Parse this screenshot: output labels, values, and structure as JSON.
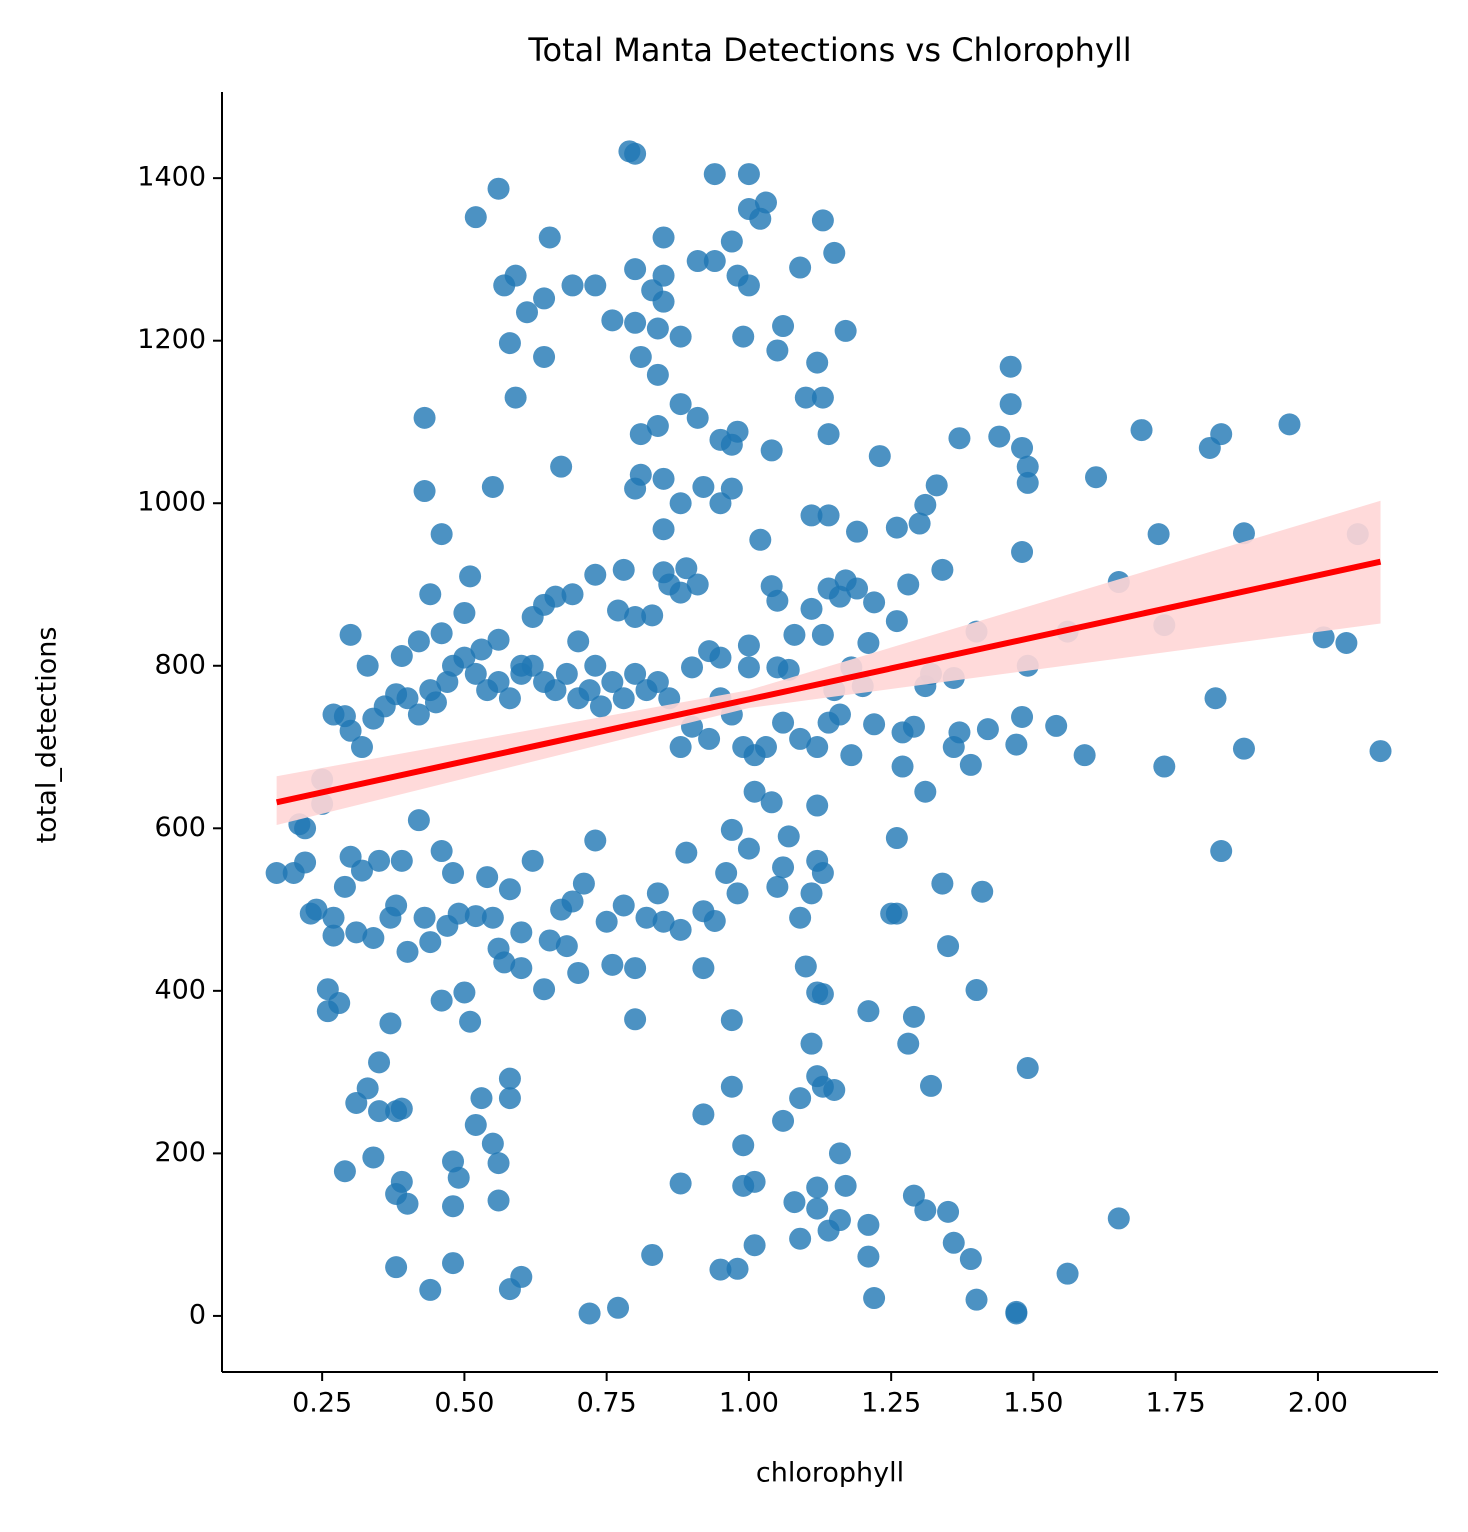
{
  "chart_data": {
    "type": "scatter",
    "title": "Total Manta Detections vs Chlorophyll",
    "x_label": "chlorophyll",
    "y_label": "total_detections",
    "xlim": [
      0.074,
      2.211
    ],
    "ylim": [
      -69,
      1506
    ],
    "xticks": [
      0.25,
      {
        "value": 0.5,
        "label": "0.50"
      },
      0.75,
      {
        "value": 1,
        "label": "1.00"
      },
      1.25,
      {
        "value": 1.5,
        "label": "1.50"
      },
      1.75,
      {
        "value": 2,
        "label": "2.00"
      }
    ],
    "yticks": [
      0,
      200,
      400,
      600,
      800,
      1000,
      1200,
      1400
    ],
    "points": {
      "color": "#1f77b4",
      "x": [
        0.79,
        0.8,
        0.56,
        0.52,
        0.94,
        1.0,
        1.0,
        1.03,
        1.02,
        1.13,
        0.65,
        0.85,
        0.97,
        1.15,
        0.64,
        0.61,
        0.59,
        0.57,
        0.69,
        0.73,
        0.8,
        0.85,
        0.91,
        0.94,
        0.98,
        1.0,
        1.09,
        0.83,
        0.85,
        0.76,
        0.8,
        0.84,
        0.88,
        0.99,
        0.58,
        0.64,
        0.81,
        0.84,
        1.06,
        1.05,
        1.17,
        1.12,
        1.46,
        0.59,
        0.43,
        0.88,
        0.91,
        0.95,
        0.97,
        0.98,
        0.81,
        0.84,
        1.1,
        1.13,
        1.14,
        1.46,
        1.44,
        1.37,
        1.48,
        1.49,
        1.49,
        1.61,
        1.69,
        1.81,
        1.83,
        1.95,
        0.67,
        0.55,
        0.43,
        0.81,
        0.8,
        0.85,
        0.88,
        0.92,
        0.95,
        0.97,
        1.04,
        1.23,
        1.33,
        1.31,
        1.11,
        1.14,
        0.46,
        0.85,
        1.02,
        1.19,
        1.26,
        1.3,
        1.48,
        1.72,
        1.87,
        2.07,
        1.65,
        1.28,
        1.34,
        0.44,
        0.51,
        0.73,
        0.78,
        0.85,
        0.89,
        0.91,
        0.3,
        0.33,
        0.39,
        0.42,
        0.46,
        0.5,
        0.53,
        0.56,
        0.6,
        0.62,
        0.64,
        0.66,
        0.69,
        0.7,
        0.73,
        0.77,
        0.8,
        0.83,
        0.86,
        0.88,
        0.93,
        0.95,
        1.0,
        1.04,
        1.05,
        1.08,
        1.11,
        1.13,
        1.14,
        1.16,
        1.17,
        1.19,
        1.22,
        1.26,
        1.21,
        1.18,
        1.15,
        1.05,
        1.07,
        1.0,
        0.9,
        1.4,
        1.56,
        1.73,
        2.01,
        2.05,
        1.49,
        1.32,
        1.36,
        1.2,
        1.31,
        1.82,
        0.25,
        0.27,
        0.29,
        0.3,
        0.32,
        0.34,
        0.36,
        0.38,
        0.4,
        0.42,
        0.44,
        0.45,
        0.47,
        0.48,
        0.5,
        0.52,
        0.54,
        0.56,
        0.58,
        0.6,
        0.62,
        0.64,
        0.66,
        0.68,
        0.7,
        0.72,
        0.74,
        0.76,
        0.78,
        0.8,
        0.82,
        0.84,
        0.86,
        0.88,
        0.9,
        0.93,
        0.95,
        0.97,
        0.99,
        1.01,
        1.03,
        1.06,
        1.09,
        1.12,
        1.14,
        1.16,
        1.18,
        1.22,
        1.27,
        1.29,
        1.36,
        1.37,
        1.39,
        1.42,
        1.47,
        1.48,
        1.54,
        1.59,
        1.73,
        1.87,
        2.11,
        1.27,
        1.31,
        1.26,
        1.83,
        0.17,
        0.2,
        0.21,
        0.22,
        0.22,
        0.23,
        0.24,
        0.25,
        0.27,
        0.27,
        0.29,
        0.3,
        0.31,
        0.32,
        0.34,
        0.35,
        0.37,
        0.38,
        0.39,
        0.4,
        0.42,
        0.43,
        0.44,
        0.46,
        0.46,
        0.47,
        0.48,
        0.49,
        0.5,
        0.51,
        0.52,
        0.54,
        0.55,
        0.56,
        0.57,
        0.58,
        0.6,
        0.6,
        0.62,
        0.64,
        0.65,
        0.67,
        0.68,
        0.69,
        0.7,
        0.71,
        0.73,
        0.75,
        0.76,
        0.78,
        0.8,
        0.8,
        0.82,
        0.84,
        0.85,
        0.88,
        0.89,
        0.92,
        0.92,
        0.94,
        0.96,
        0.97,
        0.98,
        1.0,
        1.01,
        1.04,
        1.05,
        1.06,
        1.07,
        1.09,
        1.1,
        1.11,
        1.12,
        1.12,
        1.13,
        1.25,
        1.26,
        1.34,
        1.41,
        1.35,
        0.97,
        1.12,
        1.13,
        1.21,
        1.29,
        1.4,
        0.26,
        0.28,
        0.26,
        0.37,
        0.35,
        0.33,
        0.31,
        0.35,
        0.38,
        0.39,
        0.34,
        0.29,
        0.38,
        0.39,
        0.4,
        0.38,
        0.44,
        0.48,
        0.49,
        0.48,
        0.48,
        0.52,
        0.53,
        0.55,
        0.56,
        0.56,
        0.58,
        0.58,
        0.58,
        0.6,
        0.72,
        0.77,
        0.83,
        0.88,
        0.92,
        0.95,
        0.97,
        0.98,
        0.99,
        0.99,
        1.01,
        1.01,
        1.06,
        1.08,
        1.09,
        1.09,
        1.11,
        1.12,
        1.12,
        1.12,
        1.13,
        1.14,
        1.15,
        1.16,
        1.16,
        1.17,
        1.21,
        1.21,
        1.22,
        1.28,
        1.29,
        1.31,
        1.32,
        1.35,
        1.36,
        1.39,
        1.4,
        1.47,
        1.47,
        1.49,
        1.56,
        1.65
      ],
      "y": [
        1433,
        1430,
        1387,
        1352,
        1405,
        1405,
        1362,
        1370,
        1350,
        1348,
        1327,
        1327,
        1322,
        1308,
        1252,
        1235,
        1280,
        1268,
        1268,
        1268,
        1288,
        1280,
        1298,
        1298,
        1280,
        1268,
        1290,
        1262,
        1248,
        1225,
        1222,
        1215,
        1205,
        1205,
        1197,
        1180,
        1180,
        1158,
        1218,
        1188,
        1212,
        1173,
        1168,
        1130,
        1105,
        1122,
        1105,
        1078,
        1072,
        1088,
        1085,
        1095,
        1130,
        1130,
        1085,
        1122,
        1082,
        1080,
        1068,
        1045,
        1025,
        1032,
        1090,
        1068,
        1085,
        1097,
        1045,
        1020,
        1015,
        1035,
        1018,
        1030,
        1000,
        1020,
        1000,
        1018,
        1065,
        1058,
        1022,
        998,
        985,
        985,
        962,
        968,
        955,
        965,
        970,
        975,
        940,
        962,
        963,
        962,
        903,
        900,
        918,
        888,
        910,
        912,
        918,
        915,
        920,
        900,
        838,
        800,
        812,
        830,
        840,
        865,
        820,
        832,
        800,
        860,
        875,
        885,
        888,
        830,
        800,
        868,
        860,
        862,
        900,
        890,
        818,
        810,
        825,
        898,
        880,
        838,
        870,
        838,
        895,
        885,
        905,
        895,
        878,
        855,
        828,
        798,
        770,
        798,
        795,
        798,
        798,
        842,
        842,
        850,
        835,
        828,
        800,
        790,
        785,
        775,
        775,
        760,
        660,
        740,
        738,
        720,
        700,
        735,
        750,
        765,
        760,
        740,
        770,
        755,
        780,
        800,
        810,
        790,
        770,
        780,
        760,
        790,
        800,
        780,
        770,
        790,
        760,
        770,
        750,
        780,
        760,
        790,
        770,
        780,
        760,
        700,
        725,
        710,
        760,
        740,
        700,
        690,
        700,
        730,
        710,
        700,
        730,
        740,
        690,
        728,
        718,
        725,
        700,
        718,
        678,
        722,
        703,
        737,
        726,
        690,
        676,
        698,
        695,
        676,
        645,
        588,
        572,
        545,
        545,
        605,
        600,
        558,
        495,
        500,
        630,
        490,
        468,
        528,
        565,
        472,
        548,
        465,
        560,
        490,
        505,
        560,
        448,
        610,
        490,
        460,
        572,
        388,
        480,
        545,
        495,
        398,
        362,
        492,
        540,
        490,
        452,
        435,
        525,
        472,
        428,
        560,
        402,
        462,
        500,
        455,
        510,
        422,
        532,
        585,
        485,
        432,
        505,
        428,
        365,
        490,
        520,
        485,
        475,
        570,
        428,
        498,
        486,
        545,
        598,
        520,
        575,
        645,
        632,
        528,
        552,
        590,
        490,
        430,
        520,
        628,
        560,
        545,
        495,
        495,
        532,
        522,
        455,
        364,
        398,
        396,
        375,
        368,
        401,
        402,
        385,
        375,
        360,
        312,
        280,
        262,
        252,
        252,
        255,
        195,
        178,
        150,
        165,
        138,
        60,
        32,
        190,
        170,
        135,
        65,
        235,
        268,
        212,
        188,
        142,
        268,
        292,
        33,
        48,
        3,
        10,
        75,
        163,
        248,
        57,
        282,
        58,
        210,
        160,
        87,
        165,
        240,
        140,
        95,
        268,
        335,
        295,
        158,
        132,
        282,
        105,
        278,
        200,
        118,
        160,
        112,
        73,
        22,
        335,
        148,
        130,
        283,
        128,
        90,
        70,
        20,
        3,
        5,
        305,
        52,
        120
      ]
    },
    "regression": {
      "color": "#ff0000",
      "x": [
        0.17,
        2.11
      ],
      "y": [
        632,
        928
      ]
    },
    "ci_band": {
      "color": "#ffd6d6",
      "x": [
        0.17,
        1.0,
        2.11
      ],
      "lower": [
        604,
        748,
        852
      ],
      "upper": [
        664,
        770,
        1003
      ]
    }
  }
}
